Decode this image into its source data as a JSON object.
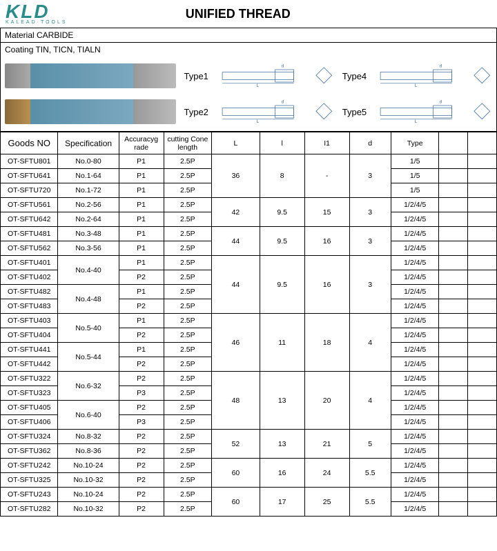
{
  "brand": {
    "name": "KLD",
    "subtitle": "KALEAD·TOOLS"
  },
  "title": "UNIFIED THREAD",
  "material_label": "Material  CARBIDE",
  "coating_label": "Coating   TIN,  TICN,  TIALN",
  "diagram_labels": {
    "type1": "Type1",
    "type2": "Type2",
    "type4": "Type4",
    "type5": "Type5"
  },
  "columns": {
    "goods": "Goods NO",
    "spec": "Specification",
    "accuracy": "Accuracyg rade",
    "cone": "cutting Cone length",
    "L": "L",
    "l": "l",
    "l1": "I1",
    "d": "d",
    "type": "Type"
  },
  "rows": [
    {
      "g": "OT-SFTU801",
      "s": "No.0-80",
      "a": "P1",
      "c": "2.5P",
      "t": "1/5"
    },
    {
      "g": "OT-SFTU641",
      "s": "No.1-64",
      "a": "P1",
      "c": "2.5P",
      "t": "1/5"
    },
    {
      "g": "OT-SFTU720",
      "s": "No.1-72",
      "a": "P1",
      "c": "2.5P",
      "t": "1/5"
    },
    {
      "g": "OT-SFTU561",
      "s": "No.2-56",
      "a": "P1",
      "c": "2.5P",
      "t": "1/2/4/5"
    },
    {
      "g": "OT-SFTU642",
      "s": "No.2-64",
      "a": "P1",
      "c": "2.5P",
      "t": "1/2/4/5"
    },
    {
      "g": "OT-SFTU481",
      "s": "No.3-48",
      "a": "P1",
      "c": "2.5P",
      "t": "1/2/4/5"
    },
    {
      "g": "OT-SFTU562",
      "s": "No.3-56",
      "a": "P1",
      "c": "2.5P",
      "t": "1/2/4/5"
    },
    {
      "g": "OT-SFTU401",
      "s": "",
      "a": "P1",
      "c": "2.5P",
      "t": "1/2/4/5"
    },
    {
      "g": "OT-SFTU402",
      "s": "",
      "a": "P2",
      "c": "2.5P",
      "t": "1/2/4/5"
    },
    {
      "g": "OT-SFTU482",
      "s": "",
      "a": "P1",
      "c": "2.5P",
      "t": "1/2/4/5"
    },
    {
      "g": "OT-SFTU483",
      "s": "",
      "a": "P2",
      "c": "2.5P",
      "t": "1/2/4/5"
    },
    {
      "g": "OT-SFTU403",
      "s": "",
      "a": "P1",
      "c": "2.5P",
      "t": "1/2/4/5"
    },
    {
      "g": "OT-SFTU404",
      "s": "",
      "a": "P2",
      "c": "2.5P",
      "t": "1/2/4/5"
    },
    {
      "g": "OT-SFTU441",
      "s": "",
      "a": "P1",
      "c": "2.5P",
      "t": "1/2/4/5"
    },
    {
      "g": "OT-SFTU442",
      "s": "",
      "a": "P2",
      "c": "2.5P",
      "t": "1/2/4/5"
    },
    {
      "g": "OT-SFTU322",
      "s": "",
      "a": "P2",
      "c": "2.5P",
      "t": "1/2/4/5"
    },
    {
      "g": "OT-SFTU323",
      "s": "",
      "a": "P3",
      "c": "2.5P",
      "t": "1/2/4/5"
    },
    {
      "g": "OT-SFTU405",
      "s": "",
      "a": "P2",
      "c": "2.5P",
      "t": "1/2/4/5"
    },
    {
      "g": "OT-SFTU406",
      "s": "",
      "a": "P3",
      "c": "2.5P",
      "t": "1/2/4/5"
    },
    {
      "g": "OT-SFTU324",
      "s": "No.8-32",
      "a": "P2",
      "c": "2.5P",
      "t": "1/2/4/5"
    },
    {
      "g": "OT-SFTU362",
      "s": "No.8-36",
      "a": "P2",
      "c": "2.5P",
      "t": "1/2/4/5"
    },
    {
      "g": "OT-SFTU242",
      "s": "No.10-24",
      "a": "P2",
      "c": "2.5P",
      "t": "1/2/4/5"
    },
    {
      "g": "OT-SFTU325",
      "s": "No.10-32",
      "a": "P2",
      "c": "2.5P",
      "t": "1/2/4/5"
    },
    {
      "g": "OT-SFTU243",
      "s": "No.10-24",
      "a": "P2",
      "c": "2.5P",
      "t": "1/2/4/5"
    },
    {
      "g": "OT-SFTU282",
      "s": "No.10-32",
      "a": "P2",
      "c": "2.5P",
      "t": "1/2/4/5"
    }
  ],
  "spec_merges": [
    {
      "row": 7,
      "span": 2,
      "text": "No.4-40"
    },
    {
      "row": 9,
      "span": 2,
      "text": "No.4-48"
    },
    {
      "row": 11,
      "span": 2,
      "text": "No.5-40"
    },
    {
      "row": 13,
      "span": 2,
      "text": "No.5-44"
    },
    {
      "row": 15,
      "span": 2,
      "text": "No.6-32"
    },
    {
      "row": 17,
      "span": 2,
      "text": "No.6-40"
    }
  ],
  "groups": [
    {
      "start": 0,
      "span": 3,
      "L": "36",
      "l": "8",
      "l1": "-",
      "d": "3"
    },
    {
      "start": 3,
      "span": 2,
      "L": "42",
      "l": "9.5",
      "l1": "15",
      "d": "3"
    },
    {
      "start": 5,
      "span": 2,
      "L": "44",
      "l": "9.5",
      "l1": "16",
      "d": "3"
    },
    {
      "start": 7,
      "span": 4,
      "L": "44",
      "l": "9.5",
      "l1": "16",
      "d": "3"
    },
    {
      "start": 11,
      "span": 4,
      "L": "46",
      "l": "11",
      "l1": "18",
      "d": "4"
    },
    {
      "start": 15,
      "span": 4,
      "L": "48",
      "l": "13",
      "l1": "20",
      "d": "4"
    },
    {
      "start": 19,
      "span": 2,
      "L": "52",
      "l": "13",
      "l1": "21",
      "d": "5"
    },
    {
      "start": 21,
      "span": 2,
      "L": "60",
      "l": "16",
      "l1": "24",
      "d": "5.5"
    },
    {
      "start": 23,
      "span": 2,
      "L": "60",
      "l": "17",
      "l1": "25",
      "d": "5.5"
    }
  ]
}
